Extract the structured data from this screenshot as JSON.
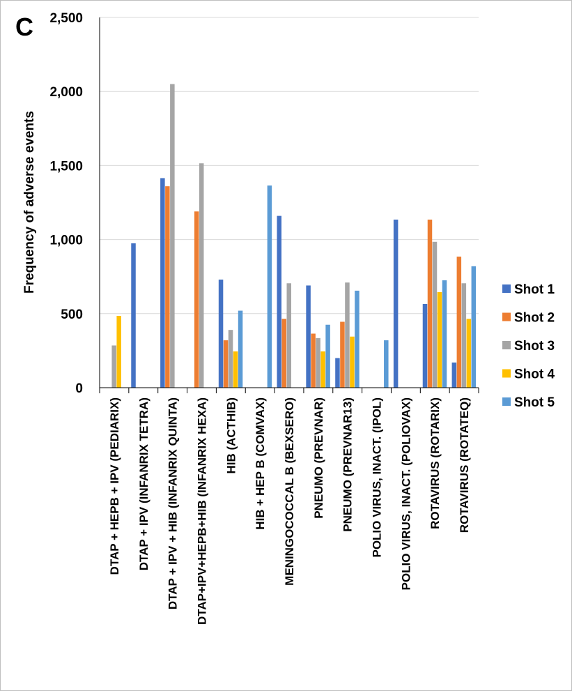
{
  "panel_label": "C",
  "colors": {
    "Shot 1": "#4472c4",
    "Shot 2": "#ed7d31",
    "Shot 3": "#a5a5a5",
    "Shot 4": "#ffc000",
    "Shot 5": "#5b9bd5",
    "grid": "#d9d9d9",
    "axis": "#000000"
  },
  "chart_data": {
    "type": "bar",
    "title": "",
    "xlabel": "",
    "ylabel": "Frequency of adverse events",
    "ylim": [
      0,
      2500
    ],
    "yticks": [
      0,
      500,
      1000,
      1500,
      2000,
      2500
    ],
    "ytick_labels": [
      "0",
      "500",
      "1,000",
      "1,500",
      "2,000",
      "2,500"
    ],
    "grid": true,
    "legend_position": "right",
    "categories": [
      "DTAP + HEPB + IPV (PEDIARIX)",
      "DTAP + IPV (INFANRIX TETRA)",
      "DTAP + IPV + HIB (INFANRIX QUINTA)",
      "DTAP+IPV+HEPB+HIB (INFANRIX HEXA)",
      "HIB (ACTHIB)",
      "HIB + HEP B (COMVAX)",
      "MENINGOCOCCAL B (BEXSERO)",
      "PNEUMO (PREVNAR)",
      "PNEUMO (PREVNAR13)",
      "POLIO VIRUS, INACT. (IPOL)",
      "POLIO VIRUS, INACT. (POLIOVAX)",
      "ROTAVIRUS (ROTARIX)",
      "ROTAVIRUS (ROTATEQ)"
    ],
    "series": [
      {
        "name": "Shot 1",
        "values": [
          0,
          975,
          1415,
          0,
          730,
          0,
          1160,
          690,
          200,
          0,
          1135,
          565,
          170
        ]
      },
      {
        "name": "Shot 2",
        "values": [
          0,
          0,
          1360,
          1190,
          320,
          0,
          465,
          365,
          445,
          0,
          0,
          1135,
          885
        ]
      },
      {
        "name": "Shot 3",
        "values": [
          285,
          0,
          2050,
          1515,
          390,
          0,
          705,
          335,
          710,
          0,
          0,
          985,
          705
        ]
      },
      {
        "name": "Shot 4",
        "values": [
          485,
          0,
          0,
          0,
          245,
          0,
          0,
          245,
          345,
          0,
          0,
          645,
          465
        ]
      },
      {
        "name": "Shot 5",
        "values": [
          0,
          0,
          0,
          0,
          520,
          1365,
          0,
          425,
          655,
          320,
          0,
          725,
          820
        ]
      }
    ]
  }
}
